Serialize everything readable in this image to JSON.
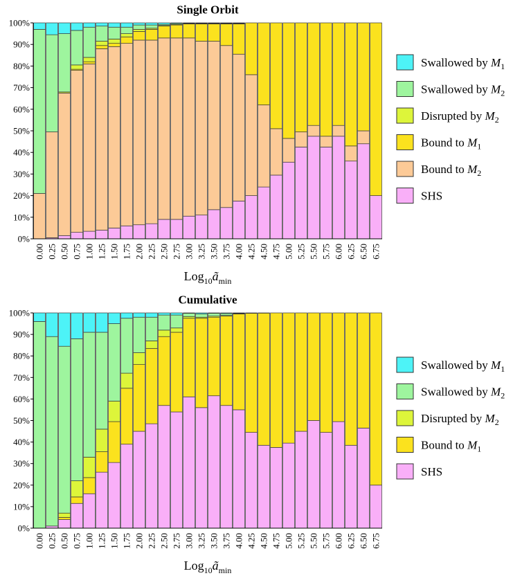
{
  "colors": {
    "swallowed_m1": "#4df3f7",
    "swallowed_m2": "#9ef59e",
    "disrupted_m2": "#ddf53a",
    "bound_m1": "#fbe21e",
    "bound_m2": "#fcca97",
    "shs": "#f9aff8",
    "bar_stroke": "#333333",
    "axis": "#000000"
  },
  "chart_data": [
    {
      "type": "bar",
      "stacked": true,
      "normalized": true,
      "title": "Single Orbit",
      "xlabel": "Log10ãmin",
      "xlabel_parts": {
        "base": "Log",
        "sub": "10",
        "var": "ã",
        "var_sub": "min"
      },
      "ylabel": "",
      "ylim": [
        0,
        100
      ],
      "yticks": [
        "0%",
        "10%",
        "20%",
        "30%",
        "40%",
        "50%",
        "60%",
        "70%",
        "80%",
        "90%",
        "100%"
      ],
      "categories": [
        "0.00",
        "0.25",
        "0.50",
        "0.75",
        "1.00",
        "1.25",
        "1.50",
        "1.75",
        "2.00",
        "2.25",
        "2.50",
        "2.75",
        "3.00",
        "3.25",
        "3.50",
        "3.75",
        "4.00",
        "4.25",
        "4.50",
        "4.75",
        "5.00",
        "5.25",
        "5.50",
        "5.75",
        "6.00",
        "6.25",
        "6.50",
        "6.75"
      ],
      "legend_position": "right",
      "series": [
        {
          "name": "SHS",
          "legend_main": "SHS",
          "color_key": "shs",
          "values": [
            0,
            0.5,
            1.5,
            3,
            3.5,
            4,
            5,
            6,
            6.5,
            7,
            9,
            9,
            10.5,
            11,
            13.5,
            14.5,
            17.5,
            20,
            24,
            29.5,
            35.5,
            42.5,
            47.5,
            42.5,
            47.5,
            36,
            44,
            20
          ]
        },
        {
          "name": "Bound to M2",
          "legend_main": "Bound to ",
          "legend_var": "M",
          "legend_sub": "2",
          "color_key": "bound_m2",
          "values": [
            21,
            49,
            66,
            75,
            77.5,
            84,
            84,
            84.5,
            85.5,
            85,
            84,
            84,
            82.5,
            80.5,
            78,
            75,
            68,
            56,
            38,
            21.5,
            11,
            7,
            5,
            5,
            5,
            7,
            6,
            0
          ]
        },
        {
          "name": "Bound to M1",
          "legend_main": "Bound to ",
          "legend_var": "M",
          "legend_sub": "1",
          "color_key": "bound_m1",
          "values": [
            0,
            0,
            0,
            0.5,
            1,
            1.5,
            1.5,
            3,
            4,
            5,
            5.5,
            6,
            6.5,
            8,
            8,
            10,
            14,
            24,
            38,
            49,
            53.5,
            50.5,
            47.5,
            52.5,
            47.5,
            57,
            50,
            80
          ]
        },
        {
          "name": "Disrupted by M2",
          "legend_main": "Disrupted by ",
          "legend_var": "M",
          "legend_sub": "2",
          "color_key": "disrupted_m2",
          "values": [
            0,
            0,
            0.5,
            2,
            2,
            2,
            2,
            1.5,
            1,
            0.5,
            0.3,
            0.3,
            0.2,
            0.2,
            0.2,
            0.2,
            0.2,
            0,
            0,
            0,
            0,
            0,
            0,
            0,
            0,
            0,
            0,
            0
          ]
        },
        {
          "name": "Swallowed by M2",
          "legend_main": "Swallowed by ",
          "legend_var": "M",
          "legend_sub": "2",
          "color_key": "swallowed_m2",
          "values": [
            76,
            45,
            27,
            16,
            14,
            7,
            5.5,
            3,
            2,
            1.5,
            0.5,
            0.4,
            0.2,
            0.2,
            0.2,
            0.2,
            0.2,
            0,
            0,
            0,
            0,
            0,
            0,
            0,
            0,
            0,
            0,
            0
          ]
        },
        {
          "name": "Swallowed by M1",
          "legend_main": "Swallowed by ",
          "legend_var": "M",
          "legend_sub": "1",
          "color_key": "swallowed_m1",
          "values": [
            3,
            5.5,
            5,
            3.5,
            2,
            1.5,
            2,
            2,
            1,
            1,
            0.7,
            0.3,
            0.1,
            0.1,
            0.1,
            0.1,
            0.1,
            0,
            0,
            0,
            0,
            0,
            0,
            0,
            0,
            0,
            0,
            0
          ]
        }
      ]
    },
    {
      "type": "bar",
      "stacked": true,
      "normalized": true,
      "title": "Cumulative",
      "xlabel": "Log10ãmin",
      "xlabel_parts": {
        "base": "Log",
        "sub": "10",
        "var": "ã",
        "var_sub": "min"
      },
      "ylabel": "",
      "ylim": [
        0,
        100
      ],
      "yticks": [
        "0%",
        "10%",
        "20%",
        "30%",
        "40%",
        "50%",
        "60%",
        "70%",
        "80%",
        "90%",
        "100%"
      ],
      "categories": [
        "0.00",
        "0.25",
        "0.50",
        "0.75",
        "1.00",
        "1.25",
        "1.50",
        "1.75",
        "2.00",
        "2.25",
        "2.50",
        "2.75",
        "3.00",
        "3.25",
        "3.50",
        "3.75",
        "4.00",
        "4.25",
        "4.50",
        "4.75",
        "5.00",
        "5.25",
        "5.50",
        "5.75",
        "6.00",
        "6.25",
        "6.50",
        "6.75"
      ],
      "legend_position": "right",
      "series": [
        {
          "name": "SHS",
          "legend_main": "SHS",
          "color_key": "shs",
          "values": [
            0,
            1,
            4,
            11.5,
            16,
            26,
            30.5,
            39,
            45,
            48.5,
            57,
            54,
            61,
            56,
            61.5,
            57,
            55,
            44.5,
            38.5,
            37.5,
            39.5,
            45,
            50,
            44.5,
            49.5,
            38.5,
            46.5,
            20
          ]
        },
        {
          "name": "Bound to M1",
          "legend_main": "Bound to ",
          "legend_var": "M",
          "legend_sub": "1",
          "color_key": "bound_m1",
          "values": [
            0,
            0,
            1,
            3,
            7.5,
            9.5,
            19,
            26,
            31,
            35,
            32,
            37,
            36.5,
            41.5,
            36.5,
            41.5,
            44.5,
            55.3,
            61.4,
            62.5,
            60.5,
            55,
            50,
            55.5,
            50.5,
            61.5,
            53.5,
            80
          ]
        },
        {
          "name": "Disrupted by M2",
          "legend_main": "Disrupted by ",
          "legend_var": "M",
          "legend_sub": "2",
          "color_key": "disrupted_m2",
          "values": [
            0,
            0,
            2,
            7.5,
            9.5,
            10.5,
            9.5,
            7,
            5.5,
            3.5,
            3,
            2,
            0.8,
            0.5,
            0.5,
            0.3,
            0.2,
            0,
            0,
            0,
            0,
            0,
            0,
            0,
            0,
            0,
            0,
            0
          ]
        },
        {
          "name": "Swallowed by M2",
          "legend_main": "Swallowed by ",
          "legend_var": "M",
          "legend_sub": "2",
          "color_key": "swallowed_m2",
          "values": [
            96,
            88,
            77.5,
            66,
            58,
            45,
            36,
            25.5,
            16.5,
            11,
            7,
            6,
            1.5,
            1.5,
            1.3,
            0.9,
            0.2,
            0.2,
            0.1,
            0,
            0,
            0,
            0,
            0,
            0,
            0,
            0,
            0
          ]
        },
        {
          "name": "Swallowed by M1",
          "legend_main": "Swallowed by ",
          "legend_var": "M",
          "legend_sub": "1",
          "color_key": "swallowed_m1",
          "values": [
            4,
            11,
            15.5,
            12,
            9,
            9,
            5,
            2.5,
            2,
            2,
            1,
            1,
            0.2,
            0.5,
            0.2,
            0.3,
            0.1,
            0,
            0,
            0,
            0,
            0,
            0,
            0,
            0,
            0,
            0,
            0
          ]
        }
      ]
    }
  ]
}
